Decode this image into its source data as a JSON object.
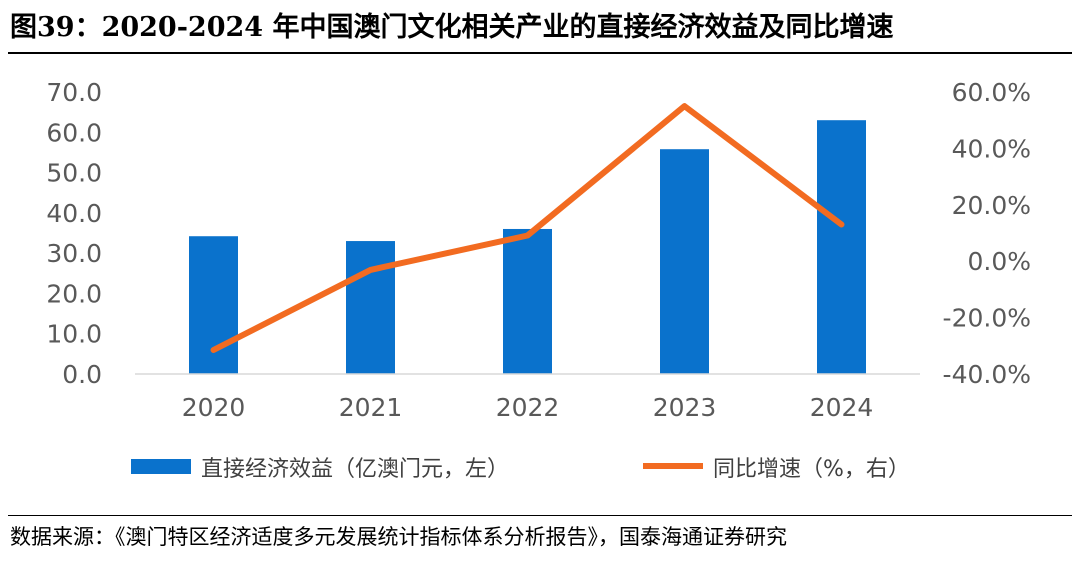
{
  "title": "图39：2020-2024 年中国澳门文化相关产业的直接经济效益及同比增速",
  "source": "数据来源：《澳门特区经济适度多元发展统计指标体系分析报告》，国泰海通证券研究",
  "colors": {
    "bar": "#0A72CC",
    "line": "#F26B21",
    "axis": "#D9D9D9",
    "text": "#595959"
  },
  "chart_data": {
    "type": "bar",
    "categories": [
      "2020",
      "2021",
      "2022",
      "2023",
      "2024"
    ],
    "series": [
      {
        "name": "直接经济效益（亿澳门元，左）",
        "type": "bar",
        "axis": "left",
        "values": [
          34.2,
          33.0,
          36.0,
          55.8,
          63.0
        ]
      },
      {
        "name": "同比增速（%，右）",
        "type": "line",
        "axis": "right",
        "values": [
          -31.5,
          -3.1,
          9.1,
          55.0,
          13.0
        ]
      }
    ],
    "y_left": {
      "min": 0,
      "max": 70,
      "step": 10,
      "ticks": [
        "0.0",
        "10.0",
        "20.0",
        "30.0",
        "40.0",
        "50.0",
        "60.0",
        "70.0"
      ]
    },
    "y_right": {
      "min": -40,
      "max": 60,
      "step": 20,
      "ticks": [
        "-40.0%",
        "-20.0%",
        "0.0%",
        "20.0%",
        "40.0%",
        "60.0%"
      ]
    },
    "grid": false,
    "legend": "bottom"
  }
}
